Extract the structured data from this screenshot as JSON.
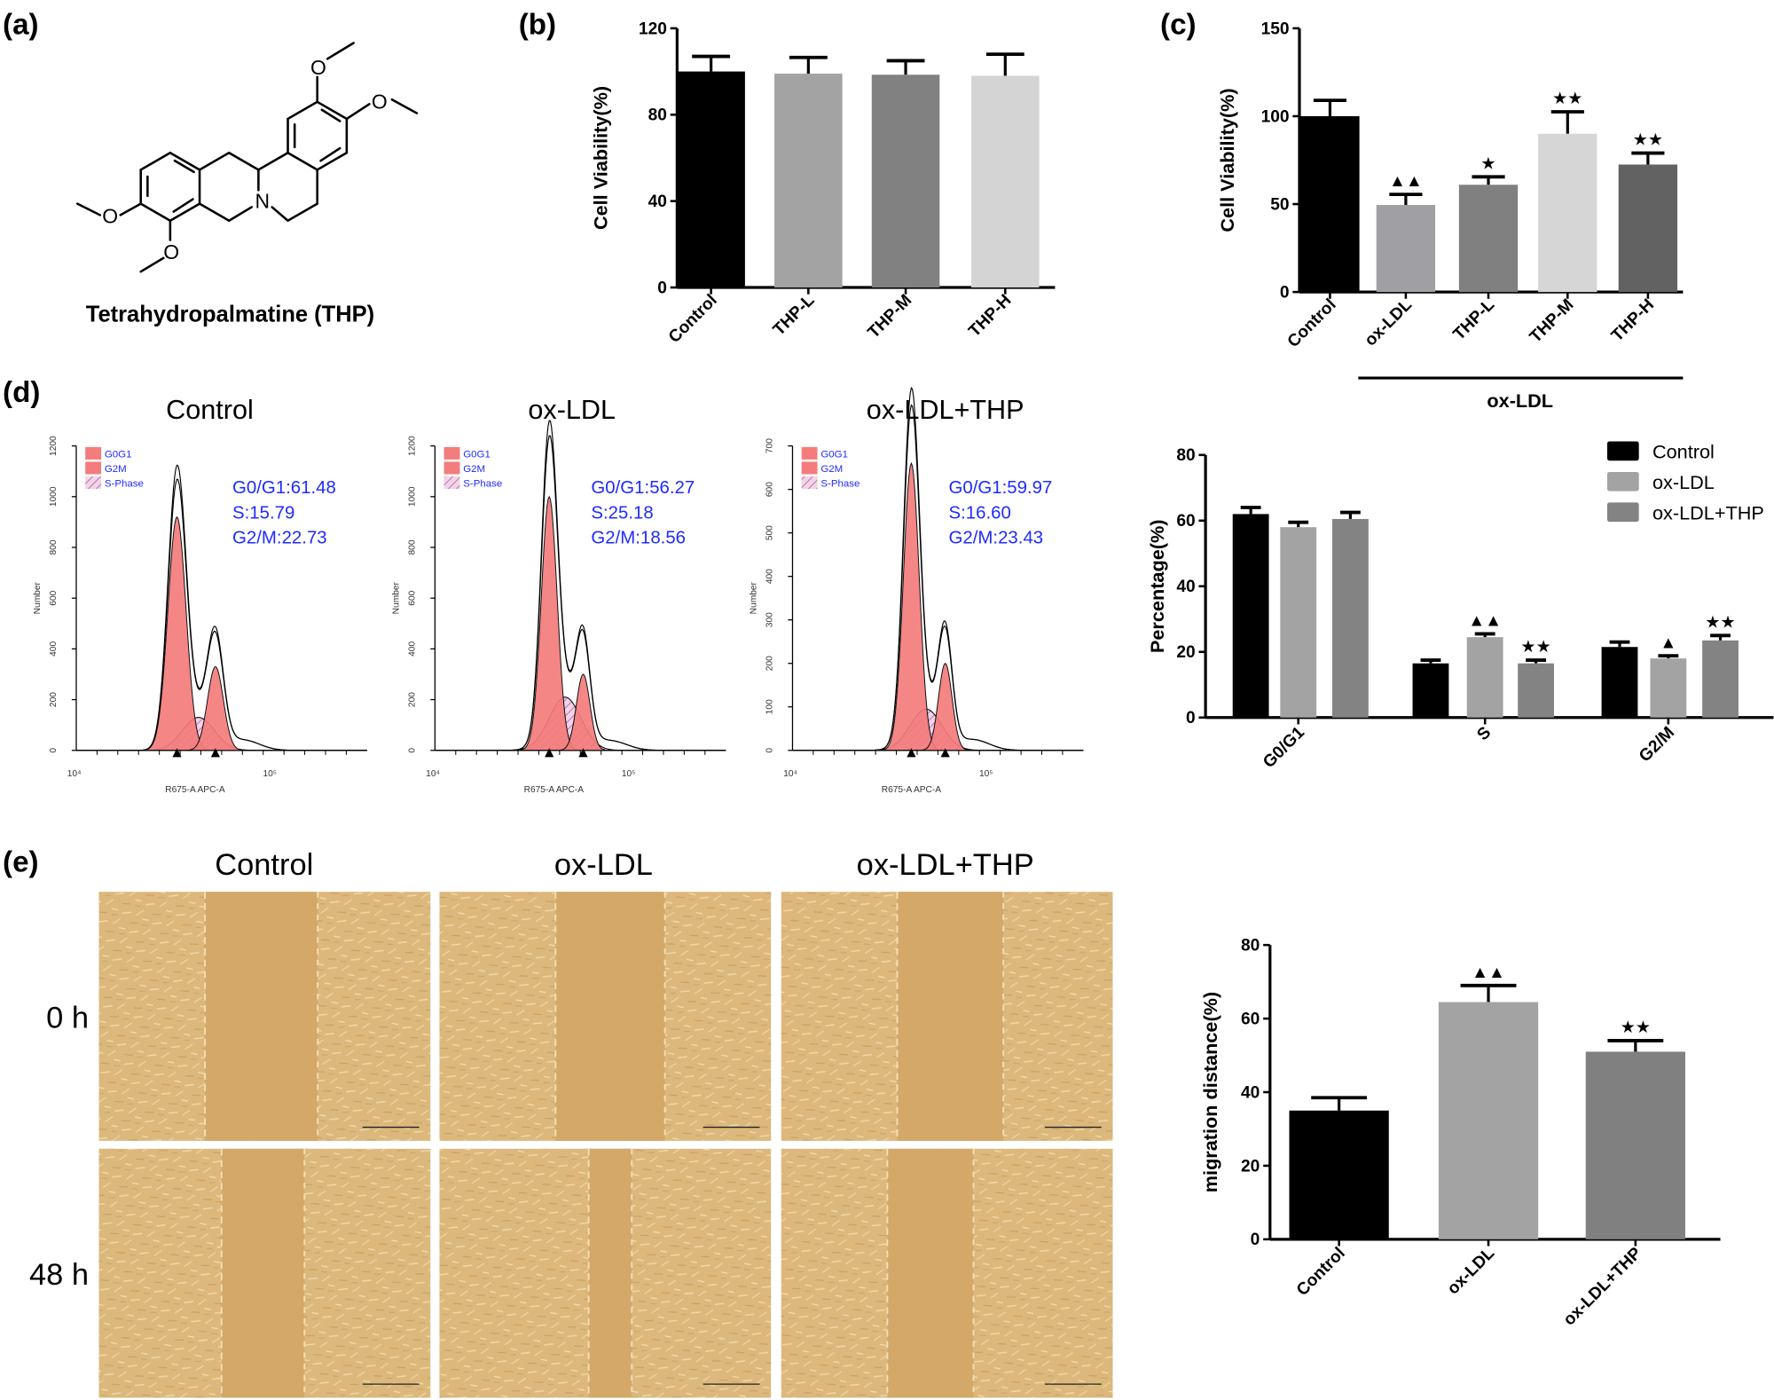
{
  "panel_labels": {
    "a": "(a)",
    "b": "(b)",
    "c": "(c)",
    "d": "(d)",
    "e": "(e)"
  },
  "molecule": {
    "caption": "Tetrahydropalmatine (THP)",
    "nitrogen": "N",
    "oxygen": "O"
  },
  "flow": {
    "ylabel": "Number",
    "xlabel": "R675-A APC-A",
    "xticks": [
      "10⁴",
      "10⁵"
    ],
    "legend": [
      "G0G1",
      "G2M",
      "S-Phase"
    ],
    "colors": {
      "g1": "#f47c7c",
      "g2": "#f47c7c",
      "s": "#8fb7e6",
      "stat": "#1f2bff"
    },
    "panels": [
      {
        "title": "Control",
        "stats": [
          "G0/G1:61.48",
          "S:15.79",
          "G2/M:22.73"
        ],
        "yticks": [
          0,
          200,
          400,
          600,
          800,
          1000,
          1200
        ]
      },
      {
        "title": "ox-LDL",
        "stats": [
          "G0/G1:56.27",
          "S:25.18",
          "G2/M:18.56"
        ],
        "yticks": [
          0,
          200,
          400,
          600,
          800,
          1000,
          1200
        ]
      },
      {
        "title": "ox-LDL+THP",
        "stats": [
          "G0/G1:59.97",
          "S:16.60",
          "G2/M:23.43"
        ],
        "yticks": [
          0,
          100,
          200,
          300,
          400,
          500,
          600,
          700
        ]
      }
    ]
  },
  "scratch": {
    "col_titles": [
      "Control",
      "ox-LDL",
      "ox-LDL+THP"
    ],
    "row_labels": [
      "0 h",
      "48 h"
    ],
    "colors": {
      "cells": "#dcb87c",
      "gap": "#d3a869",
      "streak": "#f3dfb2"
    }
  },
  "chart_data": [
    {
      "id": "b",
      "type": "bar",
      "title": "",
      "xlabel": "",
      "ylabel": "Cell Viability(%)",
      "ylim": [
        0,
        120
      ],
      "yticks": [
        0,
        40,
        80,
        120
      ],
      "categories": [
        "Control",
        "THP-L",
        "THP-M",
        "THP-H"
      ],
      "values": [
        100,
        99,
        98.5,
        98
      ],
      "errors": [
        7,
        7.5,
        6.5,
        10
      ],
      "markers": [
        "",
        "",
        "",
        ""
      ],
      "colors": [
        "#000000",
        "#a3a3a3",
        "#818181",
        "#d4d4d4"
      ]
    },
    {
      "id": "c",
      "type": "bar",
      "title": "",
      "xlabel": "",
      "ylabel": "Cell Viability(%)",
      "ylim": [
        0,
        150
      ],
      "yticks": [
        0,
        50,
        100,
        150
      ],
      "categories": [
        "Control",
        "ox-LDL",
        "THP-L",
        "THP-M",
        "THP-H"
      ],
      "values": [
        100,
        49.5,
        61,
        90,
        72.5
      ],
      "errors": [
        9,
        6,
        4.5,
        12.5,
        6.5
      ],
      "markers": [
        "",
        "▲▲",
        "★",
        "★★",
        "★★"
      ],
      "group_label": "ox-LDL",
      "colors": [
        "#000000",
        "#a0a0a4",
        "#808080",
        "#d6d6d6",
        "#626262"
      ]
    },
    {
      "id": "d",
      "type": "bar",
      "title": "",
      "xlabel": "",
      "ylabel": "Percentage(%)",
      "ylim": [
        0,
        80
      ],
      "yticks": [
        0,
        20,
        40,
        60,
        80
      ],
      "categories": [
        "G0/G1",
        "S",
        "G2/M"
      ],
      "legend_position": "top-right",
      "series": [
        {
          "name": "Control",
          "color": "#000000",
          "values": [
            62,
            16.5,
            21.5
          ],
          "errors": [
            2,
            1,
            1.5
          ],
          "markers": [
            "",
            "",
            ""
          ]
        },
        {
          "name": "ox-LDL",
          "color": "#a3a3a3",
          "values": [
            58,
            24.5,
            18
          ],
          "errors": [
            1.5,
            1,
            0.8
          ],
          "markers": [
            "",
            "▲▲",
            "▲"
          ]
        },
        {
          "name": "ox-LDL+THP",
          "color": "#838383",
          "values": [
            60.5,
            16.5,
            23.5
          ],
          "errors": [
            2,
            1,
            1.5
          ],
          "markers": [
            "",
            "★★",
            "★★"
          ]
        }
      ]
    },
    {
      "id": "e",
      "type": "bar",
      "title": "",
      "xlabel": "",
      "ylabel": "migration distance(%)",
      "ylim": [
        0,
        80
      ],
      "yticks": [
        0,
        20,
        40,
        60,
        80
      ],
      "categories": [
        "Control",
        "ox-LDL",
        "ox-LDL+THP"
      ],
      "values": [
        35,
        64.5,
        51
      ],
      "errors": [
        3.5,
        4.5,
        3
      ],
      "markers": [
        "",
        "▲▲",
        "★★"
      ],
      "colors": [
        "#000000",
        "#a3a3a3",
        "#808080"
      ]
    }
  ]
}
